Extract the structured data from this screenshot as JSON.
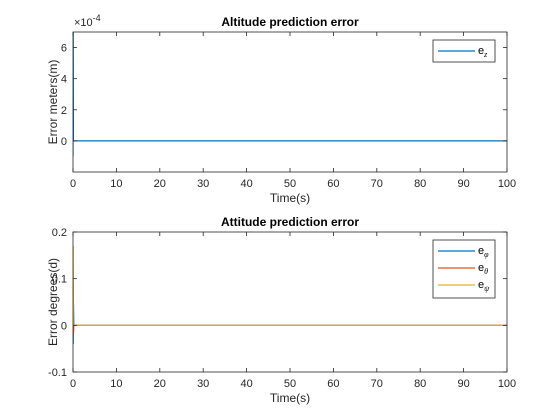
{
  "chart_data": [
    {
      "type": "line",
      "title": "Altitude prediction error",
      "xlabel": "Time(s)",
      "ylabel": "Error meters(m)",
      "xlim": [
        0,
        100
      ],
      "ylim": [
        -2,
        7
      ],
      "y_multiplier_label": "×10",
      "y_multiplier_exponent": "-4",
      "x_ticks": [
        0,
        10,
        20,
        30,
        40,
        50,
        60,
        70,
        80,
        90,
        100
      ],
      "y_ticks": [
        0,
        2,
        4,
        6
      ],
      "grid": false,
      "legend_placement": "top-right",
      "series": [
        {
          "name": "e",
          "subscript": "z",
          "color": "#0072BD",
          "x": [
            0,
            0.05,
            0.1,
            0.2,
            1,
            100
          ],
          "y": [
            -1.0,
            7.0,
            0.05,
            0,
            0,
            0
          ]
        }
      ]
    },
    {
      "type": "line",
      "title": "Attitude prediction error",
      "xlabel": "Time(s)",
      "ylabel": "Error degrees(d)",
      "xlim": [
        0,
        100
      ],
      "ylim": [
        -0.1,
        0.2
      ],
      "x_ticks": [
        0,
        10,
        20,
        30,
        40,
        50,
        60,
        70,
        80,
        90,
        100
      ],
      "y_ticks": [
        -0.1,
        0,
        0.1,
        0.2
      ],
      "grid": false,
      "legend_placement": "top-right",
      "series": [
        {
          "name": "e",
          "subscript": "φ",
          "color": "#0072BD",
          "x": [
            0,
            0.05,
            0.1,
            0.2,
            100
          ],
          "y": [
            0,
            -0.04,
            0.05,
            0,
            0
          ]
        },
        {
          "name": "e",
          "subscript": "θ",
          "color": "#D95319",
          "x": [
            0,
            0.05,
            0.1,
            0.2,
            100
          ],
          "y": [
            0,
            0.09,
            -0.02,
            0,
            0
          ]
        },
        {
          "name": "e",
          "subscript": "ψ",
          "color": "#EDB120",
          "x": [
            0,
            0.05,
            0.1,
            0.2,
            100
          ],
          "y": [
            0,
            0.17,
            0.0,
            0,
            0
          ]
        }
      ]
    }
  ]
}
